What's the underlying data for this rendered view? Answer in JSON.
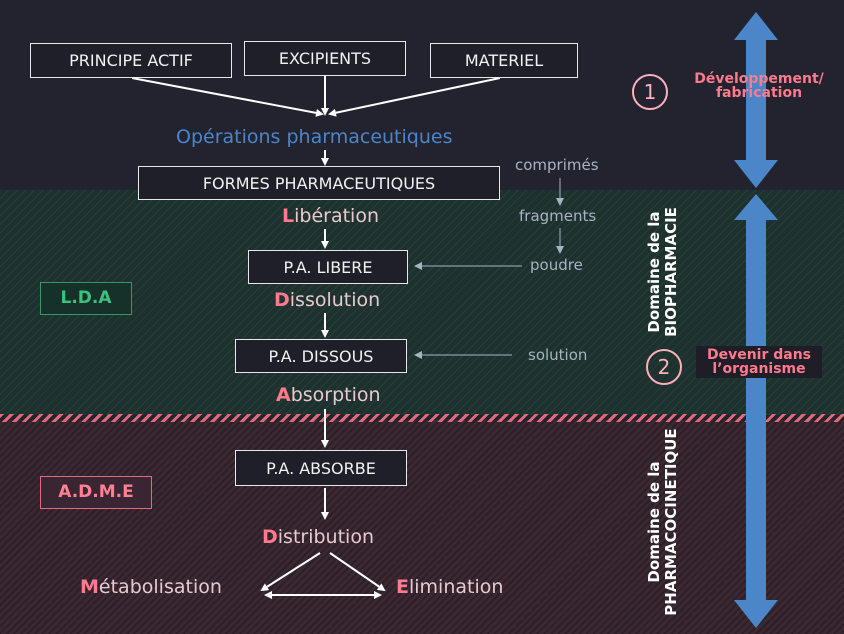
{
  "inputs": {
    "principe_actif": "PRINCIPE ACTIF",
    "excipients": "EXCIPIENTS",
    "materiel": "MATERIEL"
  },
  "operations": "Opérations pharmaceutiques",
  "formes": "FORMES PHARMACEUTIQUES",
  "steps": {
    "liberation": {
      "cap": "L",
      "rest": "ibération"
    },
    "dissolution": {
      "cap": "D",
      "rest": "issolution"
    },
    "absorption": {
      "cap": "A",
      "rest": "bsorption"
    },
    "distribution": {
      "cap": "D",
      "rest": "istribution"
    },
    "metabolisation": {
      "cap": "M",
      "rest": "étabolisation"
    },
    "elimination": {
      "cap": "E",
      "rest": "limination"
    }
  },
  "states": {
    "libere": "P.A. LIBERE",
    "dissous": "P.A. DISSOUS",
    "absorbe": "P.A. ABSORBE"
  },
  "side_forms": {
    "comprimes": "comprimés",
    "fragments": "fragments",
    "poudre": "poudre",
    "solution": "solution"
  },
  "tags": {
    "lda": "L.D.A",
    "adme": "A.D.M.E"
  },
  "domains": {
    "bio_line1": "Domaine de la",
    "bio_line2": "BIOPHARMACIE",
    "pk_line1": "Domaine de la",
    "pk_line2": "PHARMACOCINETIQUE"
  },
  "phases": {
    "phase1_number": "1",
    "phase1_line1": "Développement/",
    "phase1_line2": "fabrication",
    "phase2_number": "2",
    "phase2_line1": "Devenir dans",
    "phase2_line2": "l’organisme"
  },
  "colors": {
    "accent_pink": "#ff7a8c",
    "accent_blue": "#4a86c8",
    "accent_green": "#3cc27c"
  }
}
